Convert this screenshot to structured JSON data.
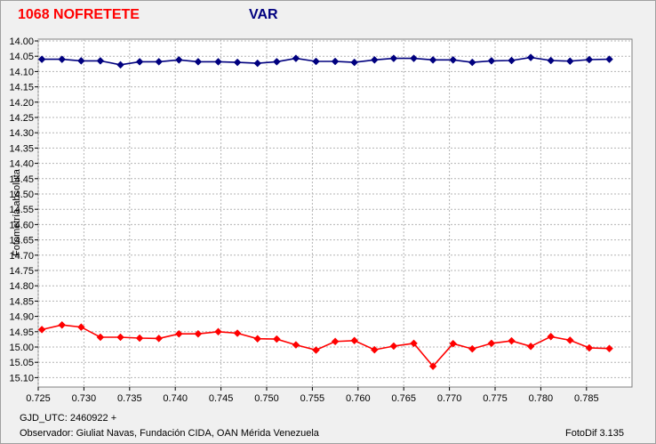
{
  "header": {
    "object_name": "1068 NOFRETETE",
    "var_label": "VAR"
  },
  "footer": {
    "gjd": "GJD_UTC: 2460922 +",
    "observer": "Observador: Giuliat Navas, Fundación CIDA, OAN Mérida Venezuela",
    "software": "FotoDif 3.135"
  },
  "colors": {
    "object": "#ff0000",
    "var": "#00007f",
    "grid": "#b4b4b4",
    "plot_bg": "#ffffff"
  },
  "chart_data": {
    "type": "line",
    "ylabel": "Fotometría absoluta",
    "xlabel": "",
    "xlim": [
      0.725,
      0.788
    ],
    "ylim": [
      14.0,
      15.12
    ],
    "y_inverted": true,
    "grid": true,
    "x_ticks": [
      "0.725",
      "0.730",
      "0.735",
      "0.740",
      "0.745",
      "0.750",
      "0.755",
      "0.760",
      "0.765",
      "0.770",
      "0.775",
      "0.780",
      "0.785"
    ],
    "y_ticks": [
      "14.00",
      "14.05",
      "14.10",
      "14.15",
      "14.20",
      "14.25",
      "14.30",
      "14.35",
      "14.40",
      "14.45",
      "14.50",
      "14.55",
      "14.60",
      "14.65",
      "14.70",
      "14.75",
      "14.80",
      "14.85",
      "14.90",
      "14.95",
      "15.00",
      "15.05",
      "15.10"
    ],
    "x": [
      0.7254,
      0.7276,
      0.7297,
      0.7318,
      0.734,
      0.7361,
      0.7382,
      0.7404,
      0.7425,
      0.7447,
      0.7468,
      0.749,
      0.7511,
      0.7532,
      0.7554,
      0.7575,
      0.7596,
      0.7618,
      0.7639,
      0.7661,
      0.7682,
      0.7704,
      0.7725,
      0.7746,
      0.7768,
      0.7789,
      0.7811,
      0.7832,
      0.7853,
      0.7875
    ],
    "series": [
      {
        "color": "#00007f",
        "values": [
          14.06,
          14.06,
          14.065,
          14.065,
          14.078,
          14.068,
          14.068,
          14.062,
          14.068,
          14.068,
          14.07,
          14.073,
          14.068,
          14.057,
          14.067,
          14.067,
          14.07,
          14.062,
          14.057,
          14.057,
          14.062,
          14.062,
          14.07,
          14.065,
          14.064,
          14.054,
          14.064,
          14.066,
          14.061,
          14.06
        ]
      },
      {
        "color": "#ff0000",
        "values": [
          14.943,
          14.928,
          14.935,
          14.968,
          14.968,
          14.971,
          14.972,
          14.957,
          14.957,
          14.95,
          14.955,
          14.973,
          14.974,
          14.993,
          15.01,
          14.982,
          14.979,
          15.009,
          14.997,
          14.988,
          15.063,
          14.989,
          15.006,
          14.988,
          14.98,
          14.998,
          14.966,
          14.978,
          15.003,
          15.005
        ]
      }
    ]
  }
}
